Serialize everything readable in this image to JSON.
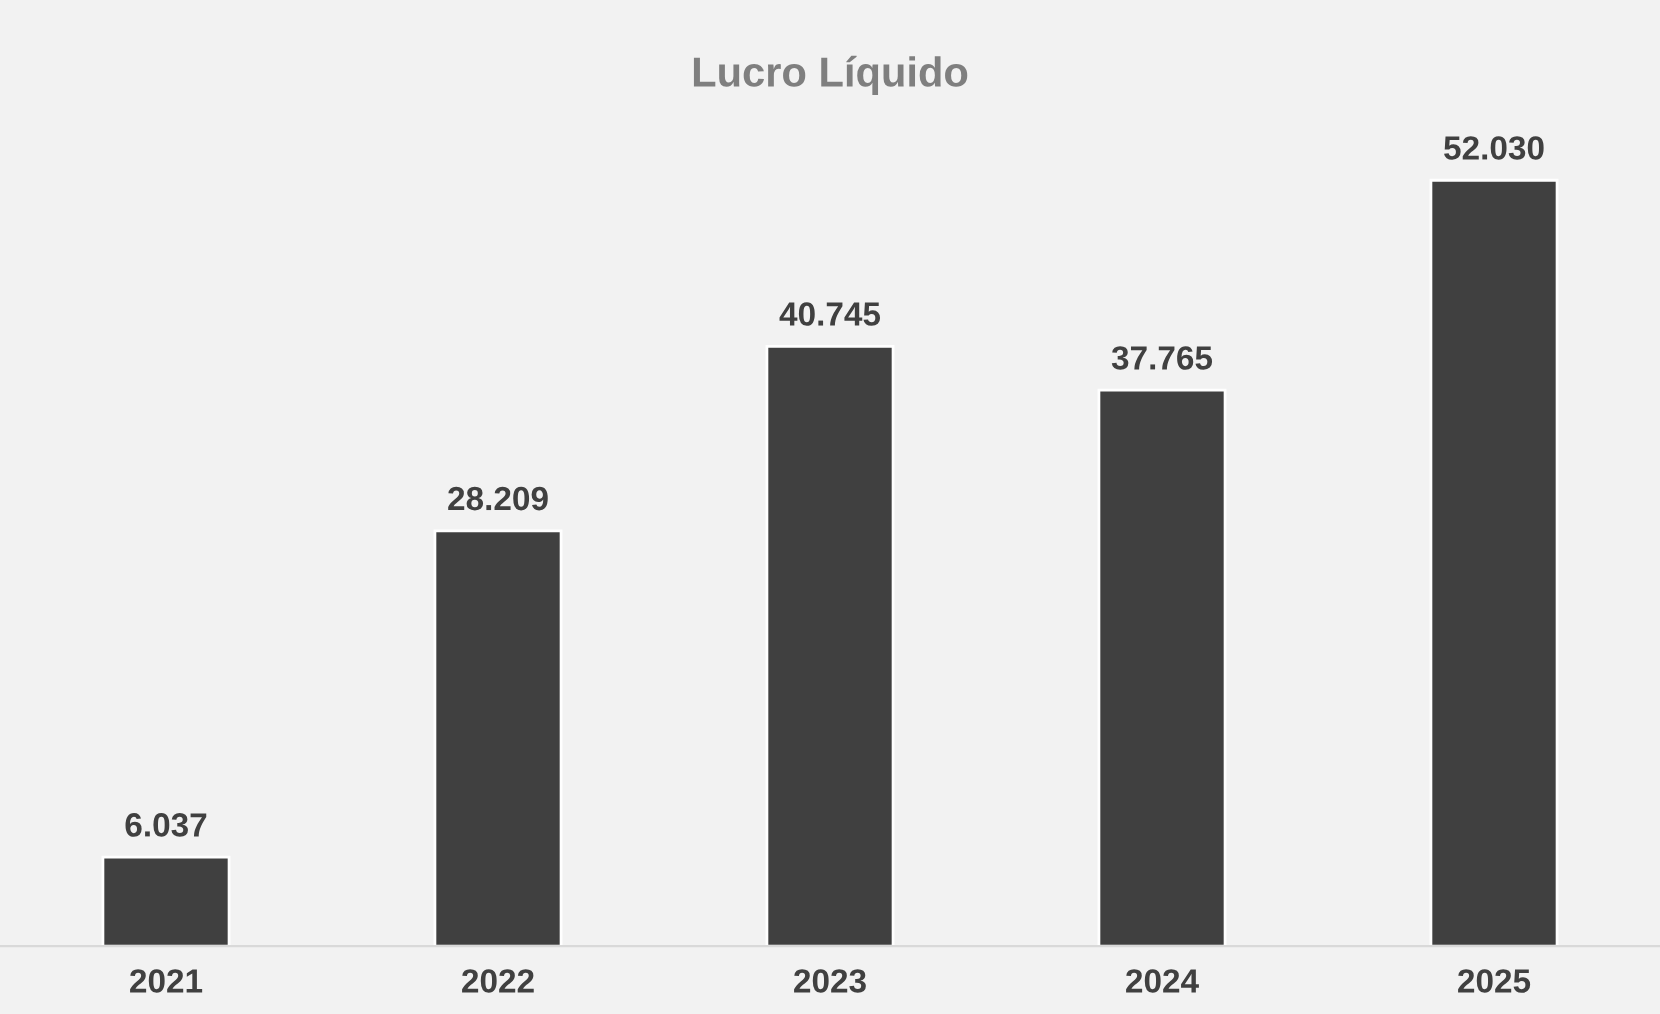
{
  "chart_data": {
    "type": "bar",
    "title": "Lucro Líquido",
    "categories": [
      "2021",
      "2022",
      "2023",
      "2024",
      "2025"
    ],
    "values": [
      6037,
      28209,
      40745,
      37765,
      52030
    ],
    "value_labels": [
      "6.037",
      "28.209",
      "40.745",
      "37.765",
      "52.030"
    ],
    "color": "#404040",
    "grid": false,
    "legend": false
  }
}
